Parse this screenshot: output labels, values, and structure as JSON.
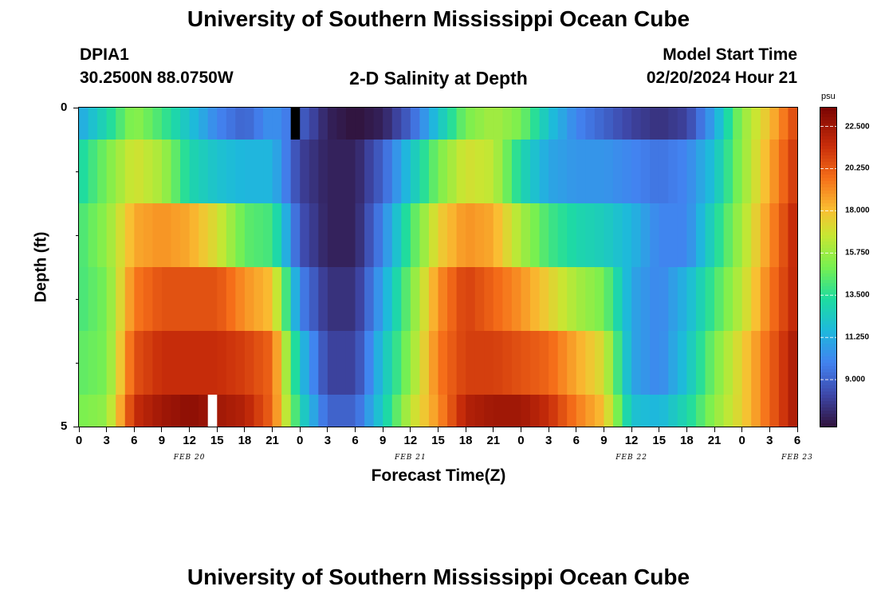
{
  "header": {
    "title": "University of Southern Mississippi Ocean Cube",
    "station_id": "DPIA1",
    "coordinates": "30.2500N  88.0750W",
    "subtitle": "2-D Salinity at Depth",
    "model_start_label": "Model Start Time",
    "model_start_value": "02/20/2024 Hour 21"
  },
  "footer": {
    "title": "University of Southern Mississippi Ocean Cube"
  },
  "colors": {
    "gap_white": "#ffffff",
    "gap_black": "#000000"
  },
  "chart_data": {
    "type": "heatmap",
    "title": "2-D Salinity at Depth",
    "xlabel": "Forecast Time(Z)",
    "ylabel": "Depth (ft)",
    "x_tick_labels": [
      "0",
      "3",
      "6",
      "9",
      "12",
      "15",
      "18",
      "21",
      "0",
      "3",
      "6",
      "9",
      "12",
      "15",
      "18",
      "21",
      "0",
      "3",
      "6",
      "9",
      "12",
      "15",
      "18",
      "21",
      "0",
      "3",
      "6"
    ],
    "x_step_hours": 3,
    "date_labels": [
      {
        "label": "FEB 20",
        "hour_index": 12
      },
      {
        "label": "FEB 21",
        "hour_index": 36
      },
      {
        "label": "FEB 22",
        "hour_index": 60
      },
      {
        "label": "FEB 23",
        "hour_index": 78
      }
    ],
    "y_tick_labels": [
      "0",
      "5"
    ],
    "ylim": [
      0,
      5
    ],
    "y_minor_ticks": [
      1,
      2,
      3,
      4
    ],
    "layers": 6,
    "hours": 78,
    "colorbar": {
      "unit": "psu",
      "min": 6.5,
      "max": 23.5,
      "ticks": [
        "22.500",
        "20.250",
        "18.000",
        "15.750",
        "13.500",
        "11.250",
        "9.000"
      ],
      "tick_values": [
        22.5,
        20.25,
        18.0,
        15.75,
        13.5,
        11.25,
        9.0
      ]
    },
    "gaps": [
      {
        "layer": 0,
        "hour": 23,
        "color": "black"
      },
      {
        "layer": 5,
        "hour": 14,
        "color": "white"
      }
    ],
    "salinity_keyframes": [
      [
        [
          0,
          11
        ],
        [
          3,
          13
        ],
        [
          6,
          15.5
        ],
        [
          9,
          14
        ],
        [
          12,
          12
        ],
        [
          15,
          10
        ],
        [
          18,
          9
        ],
        [
          21,
          10.5
        ],
        [
          24,
          9
        ],
        [
          27,
          7
        ],
        [
          30,
          6.5
        ],
        [
          33,
          7
        ],
        [
          36,
          9
        ],
        [
          39,
          12
        ],
        [
          42,
          15
        ],
        [
          45,
          16
        ],
        [
          48,
          15
        ],
        [
          51,
          12
        ],
        [
          54,
          10
        ],
        [
          57,
          9
        ],
        [
          60,
          8
        ],
        [
          63,
          7.5
        ],
        [
          66,
          8
        ],
        [
          69,
          11
        ],
        [
          72,
          15.5
        ],
        [
          75,
          18
        ],
        [
          78,
          21
        ]
      ],
      [
        [
          0,
          13
        ],
        [
          3,
          15
        ],
        [
          6,
          17
        ],
        [
          9,
          16
        ],
        [
          12,
          13
        ],
        [
          15,
          12
        ],
        [
          18,
          11.5
        ],
        [
          21,
          11.5
        ],
        [
          24,
          8
        ],
        [
          27,
          7
        ],
        [
          30,
          7
        ],
        [
          33,
          9
        ],
        [
          36,
          12
        ],
        [
          39,
          15
        ],
        [
          42,
          17
        ],
        [
          45,
          16.5
        ],
        [
          48,
          13
        ],
        [
          51,
          11
        ],
        [
          54,
          10.5
        ],
        [
          57,
          10.5
        ],
        [
          60,
          10
        ],
        [
          63,
          9.5
        ],
        [
          66,
          10
        ],
        [
          69,
          12
        ],
        [
          72,
          15.5
        ],
        [
          75,
          18.5
        ],
        [
          78,
          21.5
        ]
      ],
      [
        [
          0,
          14
        ],
        [
          3,
          15.5
        ],
        [
          6,
          18.5
        ],
        [
          9,
          19
        ],
        [
          12,
          18.5
        ],
        [
          15,
          17
        ],
        [
          18,
          14.5
        ],
        [
          21,
          14
        ],
        [
          24,
          8.5
        ],
        [
          27,
          7
        ],
        [
          30,
          7
        ],
        [
          33,
          10
        ],
        [
          36,
          14
        ],
        [
          39,
          17.5
        ],
        [
          42,
          19
        ],
        [
          45,
          18.5
        ],
        [
          48,
          16
        ],
        [
          51,
          14
        ],
        [
          54,
          13
        ],
        [
          57,
          12.5
        ],
        [
          60,
          11.5
        ],
        [
          63,
          10
        ],
        [
          66,
          10
        ],
        [
          69,
          13
        ],
        [
          72,
          16
        ],
        [
          75,
          19
        ],
        [
          78,
          22
        ]
      ],
      [
        [
          0,
          14
        ],
        [
          3,
          15
        ],
        [
          6,
          19.5
        ],
        [
          9,
          20.5
        ],
        [
          12,
          20.5
        ],
        [
          15,
          20.5
        ],
        [
          18,
          19
        ],
        [
          21,
          18
        ],
        [
          24,
          10
        ],
        [
          27,
          7.5
        ],
        [
          30,
          7.5
        ],
        [
          33,
          11
        ],
        [
          36,
          15
        ],
        [
          39,
          19
        ],
        [
          42,
          21
        ],
        [
          45,
          20
        ],
        [
          48,
          19
        ],
        [
          51,
          17.5
        ],
        [
          54,
          16
        ],
        [
          57,
          15
        ],
        [
          60,
          11
        ],
        [
          63,
          10
        ],
        [
          66,
          11.5
        ],
        [
          69,
          14
        ],
        [
          72,
          16.5
        ],
        [
          75,
          19.5
        ],
        [
          78,
          22
        ]
      ],
      [
        [
          0,
          14.5
        ],
        [
          3,
          15
        ],
        [
          6,
          20.5
        ],
        [
          9,
          21.5
        ],
        [
          12,
          21.5
        ],
        [
          15,
          21.5
        ],
        [
          18,
          21
        ],
        [
          21,
          20
        ],
        [
          24,
          12
        ],
        [
          27,
          8
        ],
        [
          30,
          8
        ],
        [
          33,
          12
        ],
        [
          36,
          15.5
        ],
        [
          39,
          19.5
        ],
        [
          42,
          21
        ],
        [
          45,
          21
        ],
        [
          48,
          20.5
        ],
        [
          51,
          20
        ],
        [
          54,
          18.5
        ],
        [
          57,
          17
        ],
        [
          60,
          11
        ],
        [
          63,
          10
        ],
        [
          66,
          12
        ],
        [
          69,
          15
        ],
        [
          72,
          17.5
        ],
        [
          75,
          20
        ],
        [
          78,
          22.5
        ]
      ],
      [
        [
          0,
          15
        ],
        [
          3,
          15.5
        ],
        [
          6,
          21.5
        ],
        [
          9,
          22.5
        ],
        [
          12,
          23
        ],
        [
          15,
          22.5
        ],
        [
          18,
          22
        ],
        [
          21,
          20
        ],
        [
          24,
          13
        ],
        [
          27,
          9
        ],
        [
          30,
          9
        ],
        [
          33,
          12.5
        ],
        [
          36,
          16.5
        ],
        [
          39,
          19
        ],
        [
          42,
          22
        ],
        [
          45,
          22.5
        ],
        [
          48,
          22.5
        ],
        [
          51,
          21.5
        ],
        [
          54,
          19.5
        ],
        [
          57,
          18
        ],
        [
          60,
          12
        ],
        [
          63,
          11.5
        ],
        [
          66,
          13
        ],
        [
          69,
          15.5
        ],
        [
          72,
          17.5
        ],
        [
          75,
          20
        ],
        [
          78,
          22.5
        ]
      ]
    ]
  }
}
